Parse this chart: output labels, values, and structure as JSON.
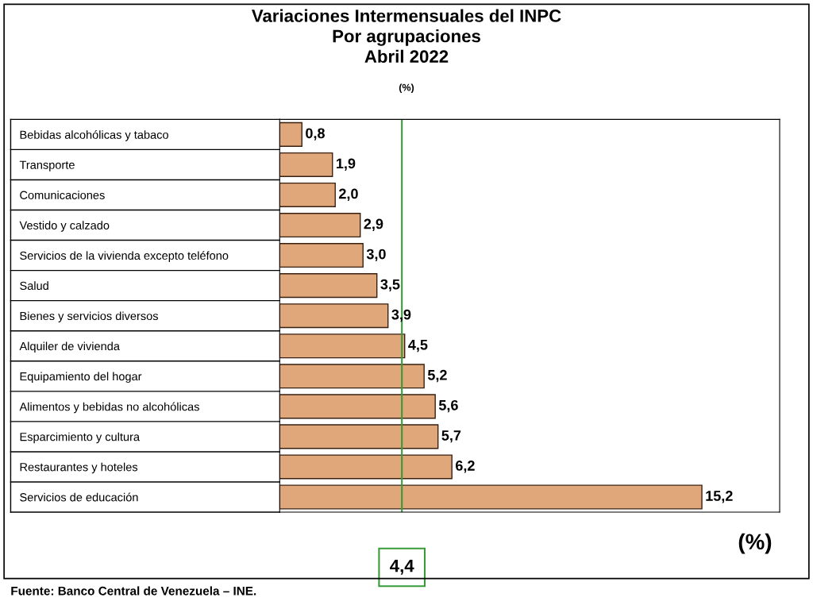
{
  "chart_data": {
    "type": "bar",
    "orientation": "horizontal",
    "title": "Variaciones Intermensuales del INPC\nPor agrupaciones\nAbril 2022",
    "subtitle": "(%)",
    "xlabel": "(%)",
    "categories": [
      "Bebidas alcohólicas y tabaco",
      "Transporte",
      "Comunicaciones",
      "Vestido y calzado",
      "Servicios de la vivienda excepto teléfono",
      "Salud",
      "Bienes y servicios diversos",
      "Alquiler de vivienda",
      "Equipamiento del hogar",
      "Alimentos y bebidas no alcohólicas",
      "Esparcimiento y cultura",
      "Restaurantes y hoteles",
      "Servicios de educación"
    ],
    "values": [
      0.8,
      1.9,
      2.0,
      2.9,
      3.0,
      3.5,
      3.9,
      4.5,
      5.2,
      5.6,
      5.7,
      6.2,
      15.2
    ],
    "value_labels": [
      "0,8",
      "1,9",
      "2,0",
      "2,9",
      "3,0",
      "3,5",
      "3,9",
      "4,5",
      "5,2",
      "5,6",
      "5,7",
      "6,2",
      "15,2"
    ],
    "color": "#dfa77a",
    "xlim": [
      0,
      18
    ],
    "tick_labels": "y",
    "grid": false,
    "ref_lines": [
      {
        "axis": "x",
        "value": 4.4,
        "label": "4,4",
        "color": "#3a9a3a"
      }
    ],
    "annotations": [
      "Fuente: Banco Central de Venezuela – INE."
    ]
  }
}
